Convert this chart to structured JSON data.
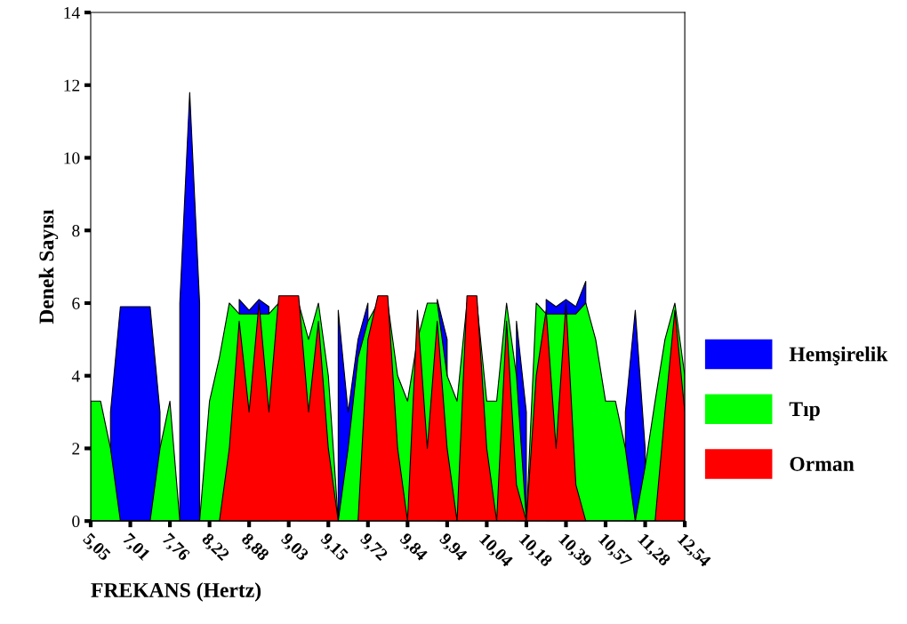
{
  "chart_data": {
    "type": "area",
    "xlabel": "FREKANS (Hertz)",
    "ylabel": "Denek Sayısı",
    "categories": [
      "5,05",
      null,
      null,
      null,
      "7,01",
      null,
      null,
      null,
      "7,76",
      null,
      null,
      null,
      "8,22",
      null,
      null,
      null,
      "8,88",
      null,
      null,
      null,
      "9,03",
      null,
      null,
      null,
      "9,15",
      null,
      null,
      null,
      "9,72",
      null,
      null,
      null,
      "9,84",
      null,
      null,
      null,
      "9,94",
      null,
      null,
      null,
      "10,04",
      null,
      null,
      null,
      "10,18",
      null,
      null,
      null,
      "10,39",
      null,
      null,
      null,
      "10,57",
      null,
      null,
      null,
      "11,28",
      null,
      null,
      null,
      "12,54"
    ],
    "series": [
      {
        "name": "Hemşirelik",
        "color": "#0000ff",
        "values": [
          null,
          null,
          3,
          5.9,
          5.9,
          5.9,
          5.9,
          3,
          null,
          6,
          11.8,
          6,
          null,
          null,
          null,
          6.1,
          5.8,
          6.1,
          5.9,
          null,
          null,
          null,
          null,
          null,
          null,
          5.8,
          3,
          5,
          6,
          null,
          null,
          null,
          null,
          null,
          null,
          6.1,
          5,
          null,
          null,
          null,
          null,
          null,
          null,
          5.5,
          3,
          null,
          6.1,
          5.9,
          6.1,
          5.9,
          6.6,
          null,
          null,
          null,
          3,
          5.8,
          2,
          null,
          null,
          null,
          null
        ]
      },
      {
        "name": "Tıp",
        "color": "#00ff00",
        "values": [
          3.3,
          3.3,
          2,
          0,
          0,
          0,
          0,
          2,
          3.3,
          0,
          0,
          0,
          3.3,
          4.5,
          6,
          5.7,
          5.7,
          5.7,
          5.7,
          6,
          null,
          6,
          5,
          6,
          4,
          0,
          2,
          4.5,
          5.5,
          6,
          6,
          4,
          3.3,
          5,
          6,
          6,
          4,
          3.3,
          6,
          6,
          3.3,
          3.3,
          6,
          4,
          0,
          6,
          5.7,
          5.7,
          5.7,
          5.7,
          6,
          5,
          3.3,
          3.3,
          2,
          0,
          1.5,
          3.3,
          5,
          6,
          4
        ]
      },
      {
        "name": "Orman",
        "color": "#ff0000",
        "values": [
          0,
          0,
          0,
          0,
          0,
          0,
          0,
          0,
          0,
          0,
          0,
          0,
          0,
          0,
          2,
          5.5,
          3,
          6,
          3,
          6.2,
          6.2,
          6.2,
          3,
          5.5,
          2,
          0,
          0,
          0,
          5,
          6.2,
          6.2,
          2,
          0,
          5.8,
          2,
          5.5,
          2,
          0,
          6.2,
          6.2,
          2,
          0,
          5.5,
          1,
          0,
          4,
          5.8,
          2,
          6,
          1,
          0,
          0,
          0,
          0,
          0,
          0,
          0,
          0,
          3,
          5.8,
          3
        ]
      }
    ],
    "ylim": [
      0,
      14
    ],
    "yticks": [
      0,
      2,
      4,
      6,
      8,
      10,
      12,
      14
    ],
    "grid": false,
    "legend": "right"
  }
}
